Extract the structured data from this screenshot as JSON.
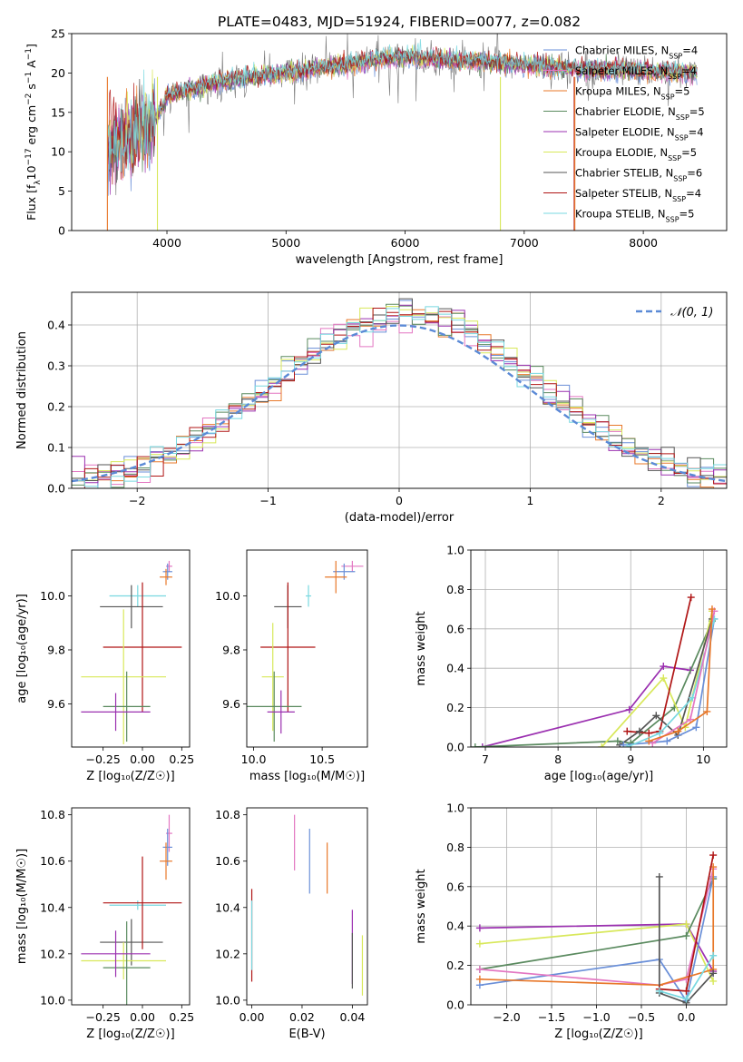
{
  "figure": {
    "title": "PLATE=0483, MJD=51924, FIBERID=0077, z=0.082"
  },
  "chart_data": [
    {
      "id": "spectrum",
      "type": "line",
      "xlabel": "wavelength [Angstrom, rest frame]",
      "ylabel_parts": [
        "Flux [f",
        "λ",
        "10",
        "−17",
        " erg cm",
        "−2",
        " s",
        "−1",
        " A",
        "−1",
        "]"
      ],
      "xlim": [
        3200,
        8700
      ],
      "ylim": [
        0,
        25
      ],
      "xticks": [
        4000,
        5000,
        6000,
        7000,
        8000
      ],
      "yticks": [
        0,
        5,
        10,
        15,
        20,
        25
      ],
      "continuum": [
        [
          3500,
          11
        ],
        [
          3700,
          12
        ],
        [
          3900,
          14
        ],
        [
          4000,
          17
        ],
        [
          4200,
          18
        ],
        [
          4500,
          19
        ],
        [
          5000,
          20
        ],
        [
          5500,
          21
        ],
        [
          5800,
          21.8
        ],
        [
          6000,
          22
        ],
        [
          6500,
          21.5
        ],
        [
          7000,
          21
        ],
        [
          7500,
          20.5
        ],
        [
          8000,
          20.3
        ],
        [
          8500,
          20
        ]
      ],
      "legend": [
        {
          "model": "Chabrier MILES",
          "n": "4",
          "color": "#6a8fd8"
        },
        {
          "model": "Salpeter MILES",
          "n": "4",
          "color": "#e377c2"
        },
        {
          "model": "Kroupa MILES",
          "n": "5",
          "color": "#e8782a"
        },
        {
          "model": "Chabrier ELODIE",
          "n": "5",
          "color": "#5a8a5f"
        },
        {
          "model": "Salpeter ELODIE",
          "n": "4",
          "color": "#9b30b0"
        },
        {
          "model": "Kroupa ELODIE",
          "n": "5",
          "color": "#d8e85a"
        },
        {
          "model": "Chabrier STELIB",
          "n": "6",
          "color": "#555555"
        },
        {
          "model": "Salpeter STELIB",
          "n": "4",
          "color": "#b01515"
        },
        {
          "model": "Kroupa STELIB",
          "n": "5",
          "color": "#78d8e0"
        }
      ],
      "legend_sub": "SSP",
      "legend_placement": "right"
    },
    {
      "id": "residuals",
      "type": "histogram",
      "xlabel": "(data-model)/error",
      "ylabel": "Normed distribution",
      "xlim": [
        -2.5,
        2.5
      ],
      "ylim": [
        0,
        0.48
      ],
      "xticks": [
        -2,
        -1,
        0,
        1,
        2
      ],
      "yticks": [
        0.0,
        0.1,
        0.2,
        0.3,
        0.4
      ],
      "bin_width": 0.1,
      "reference_label": "𝒩(0, 1)",
      "reference_color": "#5b8ad6",
      "grid": true,
      "legend_placement": "top-right"
    },
    {
      "id": "age_vs_Z",
      "type": "errorbar",
      "xlabel": "Z [log₁₀(Z/Z☉)]",
      "ylabel": "age  [log₁₀(age/yr)]",
      "xlim": [
        -0.45,
        0.3
      ],
      "ylim": [
        9.44,
        10.17
      ],
      "xticks": [
        -0.25,
        0.0,
        0.25
      ],
      "yticks": [
        9.6,
        9.8,
        10.0
      ],
      "points": [
        {
          "x": 0.17,
          "y": 10.11,
          "xerr": 0.02,
          "yerr": 0.02,
          "color": "#e377c2"
        },
        {
          "x": 0.16,
          "y": 10.09,
          "xerr": 0.03,
          "yerr": 0.03,
          "color": "#6a8fd8"
        },
        {
          "x": 0.15,
          "y": 10.07,
          "xerr": 0.04,
          "yerr": 0.03,
          "color": "#e8782a"
        },
        {
          "x": -0.03,
          "y": 10.0,
          "xerr": 0.18,
          "yerr": 0.04,
          "color": "#78d8e0"
        },
        {
          "x": -0.07,
          "y": 9.96,
          "xerr": 0.2,
          "yerr": 0.08,
          "color": "#555555"
        },
        {
          "x": 0.0,
          "y": 9.81,
          "xerr": 0.25,
          "yerr": 0.24,
          "color": "#b01515"
        },
        {
          "x": -0.12,
          "y": 9.7,
          "xerr": 0.27,
          "yerr": 0.25,
          "color": "#d8e85a"
        },
        {
          "x": -0.1,
          "y": 9.59,
          "xerr": 0.15,
          "yerr": 0.13,
          "color": "#5a8a5f"
        },
        {
          "x": -0.17,
          "y": 9.57,
          "xerr": 0.22,
          "yerr": 0.07,
          "color": "#9b30b0"
        }
      ]
    },
    {
      "id": "age_vs_mass",
      "type": "errorbar",
      "xlabel": "mass [log₁₀(M/M☉)]",
      "ylabel": "",
      "xlim": [
        9.95,
        10.83
      ],
      "ylim": [
        9.44,
        10.17
      ],
      "xticks": [
        10.0,
        10.5
      ],
      "yticks": [
        9.6,
        9.8,
        10.0
      ],
      "points": [
        {
          "x": 10.72,
          "y": 10.11,
          "xerr": 0.08,
          "yerr": 0.02,
          "color": "#e377c2"
        },
        {
          "x": 10.66,
          "y": 10.09,
          "xerr": 0.08,
          "yerr": 0.03,
          "color": "#6a8fd8"
        },
        {
          "x": 10.6,
          "y": 10.07,
          "xerr": 0.08,
          "yerr": 0.06,
          "color": "#e8782a"
        },
        {
          "x": 10.4,
          "y": 10.0,
          "xerr": 0.02,
          "yerr": 0.04,
          "color": "#78d8e0"
        },
        {
          "x": 10.25,
          "y": 9.96,
          "xerr": 0.1,
          "yerr": 0.08,
          "color": "#555555"
        },
        {
          "x": 10.25,
          "y": 9.81,
          "xerr": 0.2,
          "yerr": 0.24,
          "color": "#b01515"
        },
        {
          "x": 10.14,
          "y": 9.7,
          "xerr": 0.08,
          "yerr": 0.2,
          "color": "#d8e85a"
        },
        {
          "x": 10.15,
          "y": 9.59,
          "xerr": 0.2,
          "yerr": 0.13,
          "color": "#5a8a5f"
        },
        {
          "x": 10.2,
          "y": 9.57,
          "xerr": 0.1,
          "yerr": 0.08,
          "color": "#9b30b0"
        }
      ]
    },
    {
      "id": "massweight_vs_age",
      "type": "line",
      "xlabel": "age  [log₁₀(age/yr)]",
      "ylabel": "mass weight",
      "xlim": [
        6.8,
        10.32
      ],
      "ylim": [
        0,
        1
      ],
      "xticks": [
        7,
        8,
        9,
        10
      ],
      "yticks": [
        0.0,
        0.2,
        0.4,
        0.6,
        0.8,
        1.0
      ],
      "grid": true,
      "series": [
        {
          "color": "#9b30b0",
          "x": [
            6.96,
            8.98,
            9.45,
            9.82
          ],
          "y": [
            0.0,
            0.19,
            0.41,
            0.39
          ]
        },
        {
          "color": "#5a8a5f",
          "x": [
            6.86,
            8.82,
            9.0,
            9.6,
            10.12
          ],
          "y": [
            0.0,
            0.03,
            0.02,
            0.2,
            0.64
          ]
        },
        {
          "color": "#d8e85a",
          "x": [
            8.6,
            9.45,
            9.75,
            10.12
          ],
          "y": [
            0.0,
            0.35,
            0.1,
            0.69
          ]
        },
        {
          "color": "#b01515",
          "x": [
            8.95,
            9.25,
            9.4,
            9.83
          ],
          "y": [
            0.08,
            0.07,
            0.08,
            0.76
          ]
        },
        {
          "color": "#555555",
          "x": [
            8.85,
            9.12,
            9.35,
            9.65,
            10.12
          ],
          "y": [
            0.01,
            0.08,
            0.16,
            0.06,
            0.65
          ]
        },
        {
          "color": "#6a8fd8",
          "x": [
            8.9,
            9.5,
            9.9,
            10.15
          ],
          "y": [
            0.01,
            0.03,
            0.1,
            0.65
          ]
        },
        {
          "color": "#78d8e0",
          "x": [
            8.95,
            9.4,
            9.85,
            10.15
          ],
          "y": [
            0.0,
            0.07,
            0.25,
            0.65
          ]
        },
        {
          "color": "#e377c2",
          "x": [
            9.3,
            9.82,
            10.15
          ],
          "y": [
            0.02,
            0.14,
            0.69
          ]
        },
        {
          "color": "#e8782a",
          "x": [
            9.25,
            9.65,
            10.05,
            10.12
          ],
          "y": [
            0.03,
            0.08,
            0.18,
            0.7
          ]
        }
      ]
    },
    {
      "id": "mass_vs_Z",
      "type": "errorbar",
      "xlabel": "Z [log₁₀(Z/Z☉)]",
      "ylabel": "mass [log₁₀(M/M☉)]",
      "xlim": [
        -0.45,
        0.3
      ],
      "ylim": [
        9.98,
        10.83
      ],
      "xticks": [
        -0.25,
        0.0,
        0.25
      ],
      "yticks": [
        10.0,
        10.2,
        10.4,
        10.6,
        10.8
      ],
      "points": [
        {
          "x": 0.17,
          "y": 10.72,
          "xerr": 0.02,
          "yerr": 0.08,
          "color": "#e377c2"
        },
        {
          "x": 0.16,
          "y": 10.66,
          "xerr": 0.03,
          "yerr": 0.08,
          "color": "#6a8fd8"
        },
        {
          "x": 0.15,
          "y": 10.6,
          "xerr": 0.04,
          "yerr": 0.08,
          "color": "#e8782a"
        },
        {
          "x": -0.03,
          "y": 10.41,
          "xerr": 0.18,
          "yerr": 0.02,
          "color": "#78d8e0"
        },
        {
          "x": -0.07,
          "y": 10.25,
          "xerr": 0.2,
          "yerr": 0.1,
          "color": "#555555"
        },
        {
          "x": 0.0,
          "y": 10.42,
          "xerr": 0.25,
          "yerr": 0.2,
          "color": "#b01515"
        },
        {
          "x": -0.12,
          "y": 10.17,
          "xerr": 0.27,
          "yerr": 0.08,
          "color": "#d8e85a"
        },
        {
          "x": -0.1,
          "y": 10.14,
          "xerr": 0.15,
          "yerr": 0.2,
          "color": "#5a8a5f"
        },
        {
          "x": -0.17,
          "y": 10.2,
          "xerr": 0.22,
          "yerr": 0.1,
          "color": "#9b30b0"
        }
      ]
    },
    {
      "id": "mass_vs_ebv",
      "type": "errorbar",
      "xlabel": "E(B-V)",
      "ylabel": "",
      "xlim": [
        -0.002,
        0.046
      ],
      "ylim": [
        9.98,
        10.83
      ],
      "xticks": [
        0.0,
        0.02,
        0.04
      ],
      "yticks": [
        10.0,
        10.2,
        10.4,
        10.6,
        10.8
      ],
      "points": [
        {
          "x": 0.0,
          "y": 10.28,
          "xerr": 0.0,
          "yerr": 0.2,
          "color": "#b01515"
        },
        {
          "x": 0.0,
          "y": 10.28,
          "xerr": 0.0,
          "yerr": 0.15,
          "color": "#78d8e0"
        },
        {
          "x": 0.017,
          "y": 10.68,
          "xerr": 0.0,
          "yerr": 0.12,
          "color": "#e377c2"
        },
        {
          "x": 0.023,
          "y": 10.6,
          "xerr": 0.0,
          "yerr": 0.14,
          "color": "#6a8fd8"
        },
        {
          "x": 0.03,
          "y": 10.57,
          "xerr": 0.0,
          "yerr": 0.11,
          "color": "#e8782a"
        },
        {
          "x": 0.04,
          "y": 10.23,
          "xerr": 0.0,
          "yerr": 0.16,
          "color": "#9b30b0"
        },
        {
          "x": 0.04,
          "y": 10.17,
          "xerr": 0.0,
          "yerr": 0.12,
          "color": "#555555"
        },
        {
          "x": 0.044,
          "y": 10.15,
          "xerr": 0.0,
          "yerr": 0.13,
          "color": "#d8e85a"
        }
      ]
    },
    {
      "id": "massweight_vs_Z",
      "type": "line",
      "xlabel": "Z [log₁₀(Z/Z☉)]",
      "ylabel": "mass weight",
      "xlim": [
        -2.4,
        0.45
      ],
      "ylim": [
        0,
        1
      ],
      "xticks": [
        -2.0,
        -1.5,
        -1.0,
        -0.5,
        0.0
      ],
      "yticks": [
        0.0,
        0.2,
        0.4,
        0.6,
        0.8,
        1.0
      ],
      "grid": true,
      "series": [
        {
          "color": "#9b30b0",
          "x": [
            -2.3,
            0.0,
            0.3
          ],
          "y": [
            0.39,
            0.41,
            0.17
          ]
        },
        {
          "color": "#d8e85a",
          "x": [
            -2.3,
            0.0,
            0.3
          ],
          "y": [
            0.31,
            0.41,
            0.12
          ]
        },
        {
          "color": "#5a8a5f",
          "x": [
            -2.3,
            0.0,
            0.3
          ],
          "y": [
            0.18,
            0.35,
            0.64
          ]
        },
        {
          "color": "#6a8fd8",
          "x": [
            -2.3,
            -0.3,
            0.0,
            0.3
          ],
          "y": [
            0.1,
            0.23,
            0.02,
            0.65
          ]
        },
        {
          "color": "#e377c2",
          "x": [
            -2.3,
            -0.3,
            0.0,
            0.3
          ],
          "y": [
            0.18,
            0.1,
            0.13,
            0.69
          ]
        },
        {
          "color": "#e8782a",
          "x": [
            -2.3,
            -0.3,
            0.3,
            0.3
          ],
          "y": [
            0.13,
            0.1,
            0.18,
            0.7
          ]
        },
        {
          "color": "#555555",
          "x": [
            -0.3,
            -0.3,
            0.0,
            0.3
          ],
          "y": [
            0.65,
            0.06,
            0.01,
            0.16
          ]
        },
        {
          "color": "#b01515",
          "x": [
            -0.3,
            0.0,
            0.3
          ],
          "y": [
            0.08,
            0.07,
            0.76
          ]
        },
        {
          "color": "#78d8e0",
          "x": [
            -0.3,
            0.0,
            0.3
          ],
          "y": [
            0.07,
            0.03,
            0.25
          ]
        }
      ]
    }
  ]
}
